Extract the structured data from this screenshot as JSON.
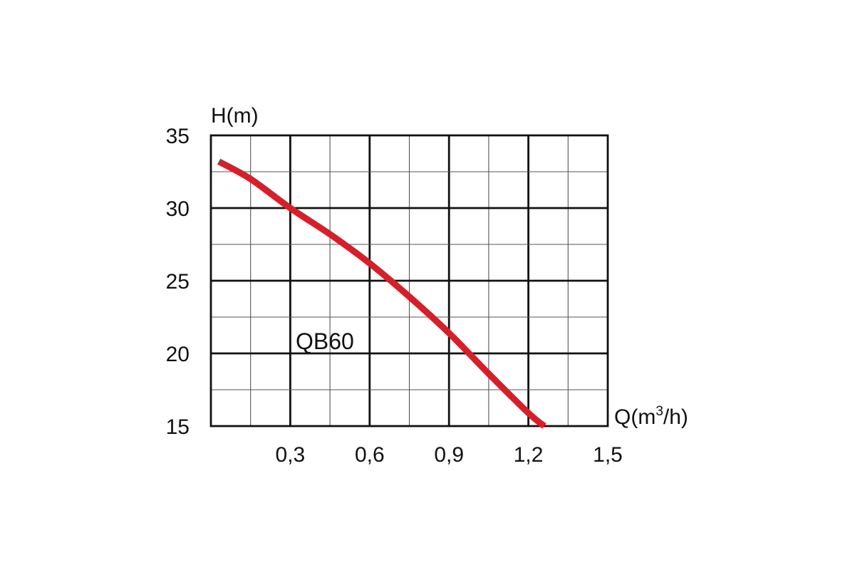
{
  "chart_data": {
    "type": "line",
    "ylabel": "H(m)",
    "xlabel_main": "Q(m",
    "xlabel_sup": "3",
    "xlabel_tail": "/h)",
    "xlim": [
      0,
      1.5
    ],
    "ylim": [
      15,
      35
    ],
    "x_ticks": [
      0.3,
      0.6,
      0.9,
      1.2,
      1.5
    ],
    "x_tick_labels": [
      "0,3",
      "0,6",
      "0,9",
      "1,2",
      "1,5"
    ],
    "y_ticks": [
      15,
      20,
      25,
      30,
      35
    ],
    "y_tick_labels": [
      "15",
      "20",
      "25",
      "30",
      "35"
    ],
    "grid": true,
    "series": [
      {
        "name": "QB60",
        "color": "#d4202a",
        "x": [
          0.03,
          0.15,
          0.3,
          0.45,
          0.6,
          0.75,
          0.9,
          1.05,
          1.2,
          1.26
        ],
        "y": [
          33.2,
          32.0,
          30.0,
          28.2,
          26.2,
          23.9,
          21.4,
          18.6,
          15.9,
          15.0
        ]
      }
    ]
  }
}
